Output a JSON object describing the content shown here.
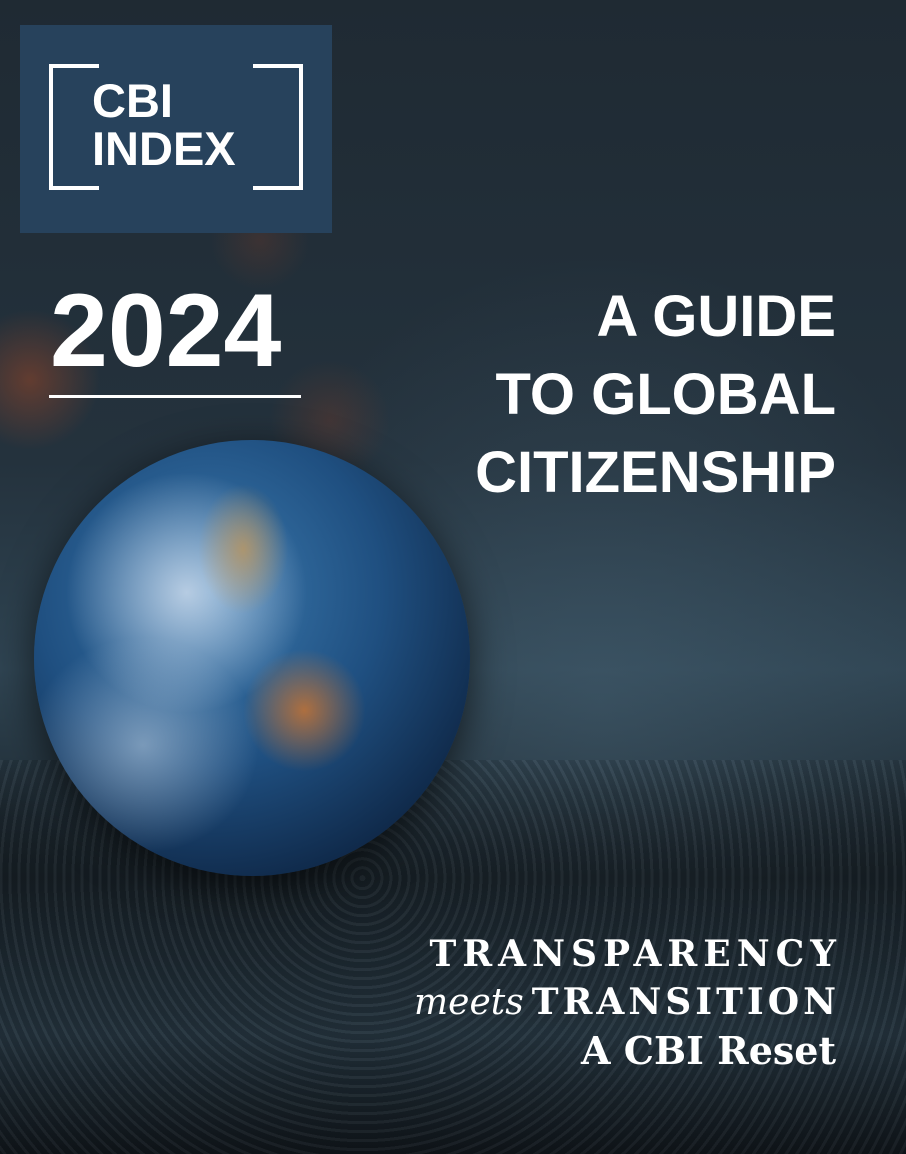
{
  "logo": {
    "line1": "CBI",
    "line2": "INDEX",
    "background": "#27425c"
  },
  "year": "2024",
  "title": {
    "line1": "A GUIDE",
    "line2": "TO GLOBAL",
    "line3": "CITIZENSHIP"
  },
  "tagline": {
    "line1": "TRANSPARENCY",
    "line2_italic": "meets",
    "line2": "TRANSITION",
    "line3": "A CBI Reset"
  }
}
